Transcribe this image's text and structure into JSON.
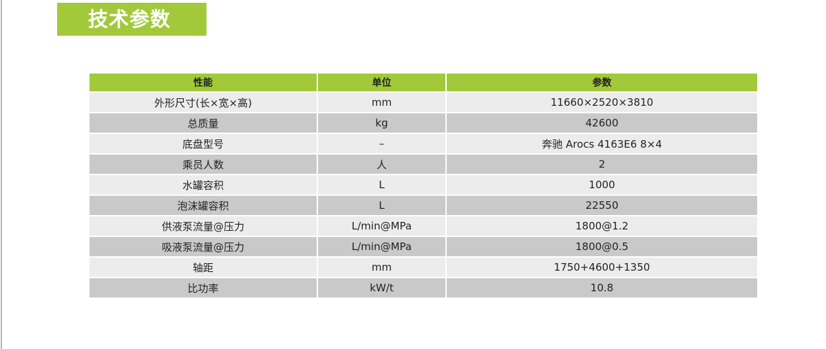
{
  "title": "技术参数",
  "table": {
    "headers": [
      "性能",
      "单位",
      "参数"
    ],
    "rows": [
      [
        "外形尺寸(长×宽×高)",
        "mm",
        "11660×2520×3810"
      ],
      [
        "总质量",
        "kg",
        "42600"
      ],
      [
        "底盘型号",
        "–",
        "奔驰 Arocs 4163E6 8×4"
      ],
      [
        "乘员人数",
        "人",
        "2"
      ],
      [
        "水罐容积",
        "L",
        "1000"
      ],
      [
        "泡沫罐容积",
        "L",
        "22550"
      ],
      [
        "供液泵流量@压力",
        "L/min@MPa",
        "1800@1.2"
      ],
      [
        "吸液泵流量@压力",
        "L/min@MPa",
        "1800@0.5"
      ],
      [
        "轴距",
        "mm",
        "1750+4600+1350"
      ],
      [
        "比功率",
        "kW/t",
        "10.8"
      ]
    ]
  },
  "colors": {
    "accent": "#a2c93a",
    "row_light": "#ececec",
    "row_dark": "#c8c9c8"
  }
}
